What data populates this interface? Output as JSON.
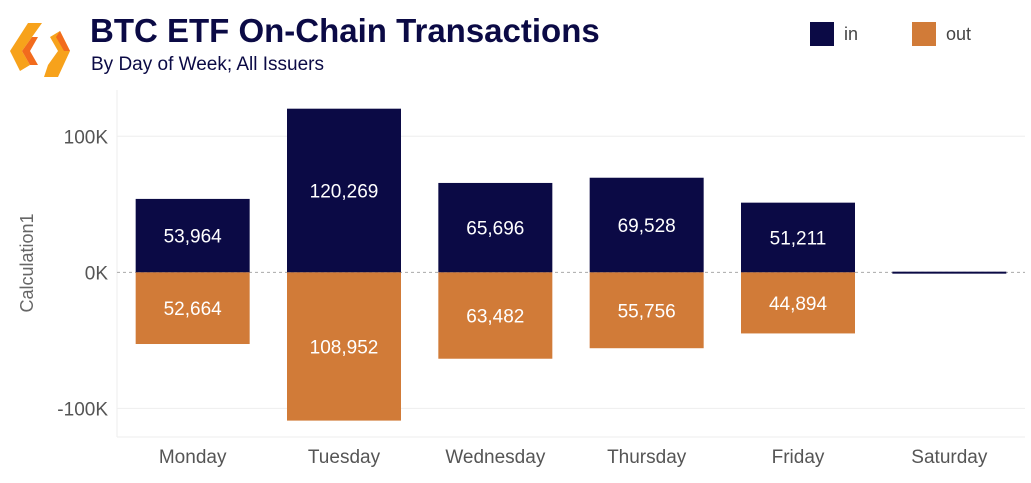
{
  "chart_data": {
    "type": "bar",
    "title": "BTC ETF On-Chain Transactions",
    "subtitle": "By Day of Week; All Issuers",
    "ylabel": "Calculation1",
    "xlabel": "",
    "categories": [
      "Monday",
      "Tuesday",
      "Wednesday",
      "Thursday",
      "Friday",
      "Saturday"
    ],
    "series": [
      {
        "name": "in",
        "color": "#0b0a45",
        "values": [
          53964,
          120269,
          65696,
          69528,
          51211,
          500
        ]
      },
      {
        "name": "out",
        "color": "#d17b38",
        "values": [
          -52664,
          -108952,
          -63482,
          -55756,
          -44894,
          0
        ]
      }
    ],
    "data_labels": {
      "in": [
        "53,964",
        "120,269",
        "65,696",
        "69,528",
        "51,211",
        ""
      ],
      "out": [
        "52,664",
        "108,952",
        "63,482",
        "55,756",
        "44,894",
        ""
      ]
    },
    "yticks": [
      {
        "v": 100000,
        "label": "100K"
      },
      {
        "v": 0,
        "label": "0K"
      },
      {
        "v": -100000,
        "label": "-100K"
      }
    ],
    "ylim": [
      -121000,
      134000
    ],
    "legend": "top-right",
    "grid": true
  }
}
